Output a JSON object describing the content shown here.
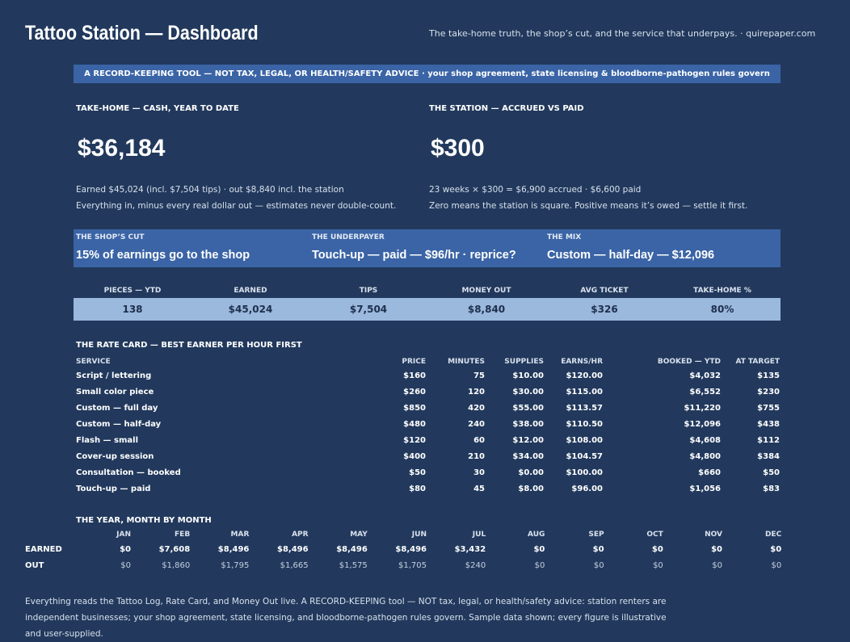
{
  "header": {
    "title": "Tattoo Station — Dashboard",
    "tagline": "The take-home truth, the shop’s cut, and the service that underpays.  ·  quirepaper.com"
  },
  "banner": "A RECORD-KEEPING TOOL — NOT TAX, LEGAL, OR HEALTH/SAFETY ADVICE  ·  your shop agreement, state licensing & bloodborne-pathogen rules govern",
  "takehome": {
    "heading": "TAKE-HOME — CASH, YEAR TO DATE",
    "value": "$36,184",
    "line1": "Earned $45,024 (incl. $7,504 tips)  ·  out $8,840 incl. the station",
    "line2": "Everything in, minus every real dollar out — estimates never double-count."
  },
  "station": {
    "heading": "THE STATION — ACCRUED VS PAID",
    "value": "$300",
    "line1": "23 weeks × $300 = $6,900 accrued  ·  $6,600 paid",
    "line2": "Zero means the station is square. Positive means it’s owed — settle it first."
  },
  "cards": [
    {
      "label": "THE SHOP’S CUT",
      "value": "15% of earnings go to the shop"
    },
    {
      "label": "THE UNDERPAYER",
      "value": "Touch-up — paid — $96/hr · reprice?"
    },
    {
      "label": "THE MIX",
      "value": "Custom — half-day — $12,096"
    }
  ],
  "kpis": [
    {
      "label": "PIECES — YTD",
      "value": "138"
    },
    {
      "label": "EARNED",
      "value": "$45,024"
    },
    {
      "label": "TIPS",
      "value": "$7,504"
    },
    {
      "label": "MONEY OUT",
      "value": "$8,840"
    },
    {
      "label": "AVG TICKET",
      "value": "$326"
    },
    {
      "label": "TAKE-HOME %",
      "value": "80%"
    }
  ],
  "rate": {
    "heading": "THE RATE CARD — BEST EARNER PER HOUR FIRST",
    "columns": [
      "SERVICE",
      "PRICE",
      "MINUTES",
      "SUPPLIES",
      "EARNS/HR",
      "BOOKED — YTD",
      "AT TARGET"
    ],
    "rows": [
      [
        "Script / lettering",
        "$160",
        "75",
        "$10.00",
        "$120.00",
        "$4,032",
        "$135"
      ],
      [
        "Small color piece",
        "$260",
        "120",
        "$30.00",
        "$115.00",
        "$6,552",
        "$230"
      ],
      [
        "Custom — full day",
        "$850",
        "420",
        "$55.00",
        "$113.57",
        "$11,220",
        "$755"
      ],
      [
        "Custom — half-day",
        "$480",
        "240",
        "$38.00",
        "$110.50",
        "$12,096",
        "$438"
      ],
      [
        "Flash — small",
        "$120",
        "60",
        "$12.00",
        "$108.00",
        "$4,608",
        "$112"
      ],
      [
        "Cover-up session",
        "$400",
        "210",
        "$34.00",
        "$104.57",
        "$4,800",
        "$384"
      ],
      [
        "Consultation — booked",
        "$50",
        "30",
        "$0.00",
        "$100.00",
        "$660",
        "$50"
      ],
      [
        "Touch-up — paid",
        "$80",
        "45",
        "$8.00",
        "$96.00",
        "$1,056",
        "$83"
      ]
    ]
  },
  "year": {
    "heading": "THE YEAR, MONTH BY MONTH",
    "months": [
      "JAN",
      "FEB",
      "MAR",
      "APR",
      "MAY",
      "JUN",
      "JUL",
      "AUG",
      "SEP",
      "OCT",
      "NOV",
      "DEC"
    ],
    "earned_label": "EARNED",
    "earned": [
      "$0",
      "$7,608",
      "$8,496",
      "$8,496",
      "$8,496",
      "$8,496",
      "$3,432",
      "$0",
      "$0",
      "$0",
      "$0",
      "$0"
    ],
    "out_label": "OUT",
    "out": [
      "$0",
      "$1,860",
      "$1,795",
      "$1,665",
      "$1,575",
      "$1,705",
      "$240",
      "$0",
      "$0",
      "$0",
      "$0",
      "$0"
    ]
  },
  "footer": "Everything reads the Tattoo Log, Rate Card, and Money Out live. A RECORD-KEEPING tool — NOT tax, legal, or health/safety advice: station renters are independent businesses; your shop agreement, state licensing, and bloodborne-pathogen rules govern. Sample data shown; every figure is illustrative and user-supplied."
}
